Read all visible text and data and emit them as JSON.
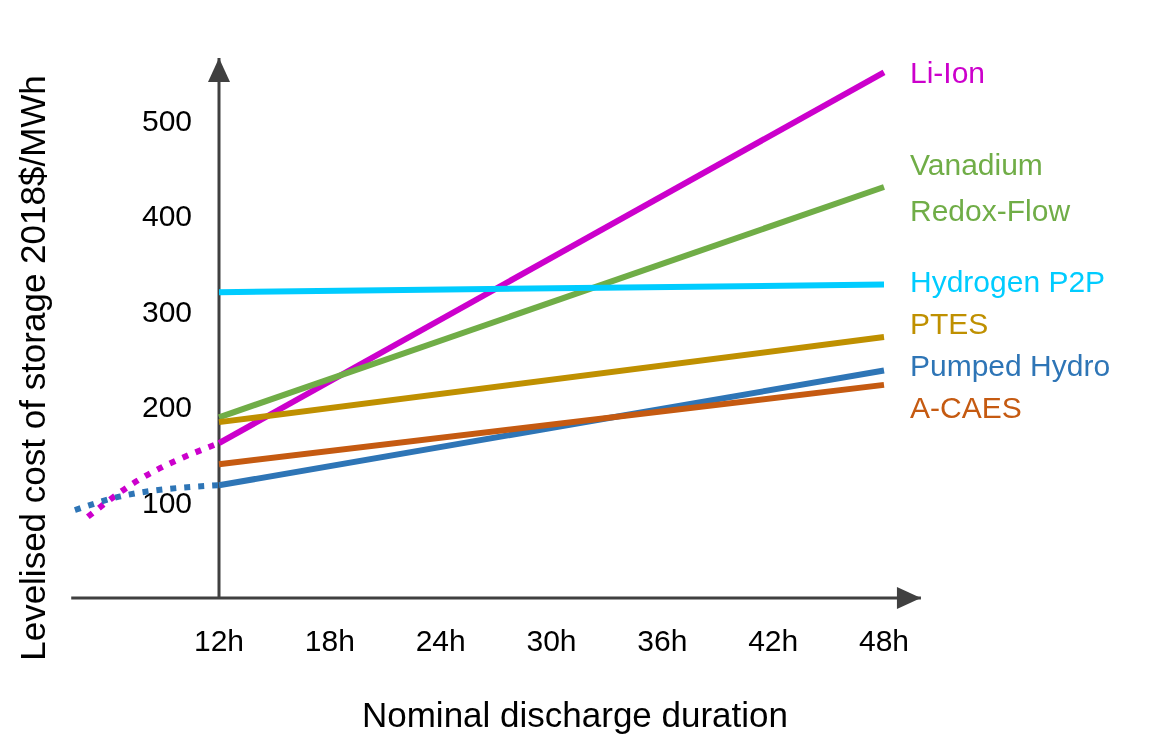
{
  "chart_data": {
    "type": "line",
    "xlabel": "Nominal discharge duration",
    "ylabel": "Levelised cost of storage 2018$/MWh",
    "xlim": [
      4,
      50
    ],
    "ylim": [
      0,
      565
    ],
    "xticks": [
      {
        "value": 12,
        "label": "12h"
      },
      {
        "value": 18,
        "label": "18h"
      },
      {
        "value": 24,
        "label": "24h"
      },
      {
        "value": 30,
        "label": "30h"
      },
      {
        "value": 36,
        "label": "36h"
      },
      {
        "value": 42,
        "label": "42h"
      },
      {
        "value": 48,
        "label": "48h"
      }
    ],
    "yticks": [
      100,
      200,
      300,
      400,
      500
    ],
    "grid": false,
    "line_style": "solid",
    "marker": "none",
    "series": [
      {
        "name": "Li-Ion",
        "color": "#cc00cc",
        "x": [
          12,
          48
        ],
        "values": [
          162,
          550
        ]
      },
      {
        "name": "Vanadium Redox-Flow",
        "color": "#70ad47",
        "x": [
          12,
          48
        ],
        "values": [
          189,
          430
        ]
      },
      {
        "name": "Hydrogen P2P",
        "color": "#00ccff",
        "x": [
          12,
          48
        ],
        "values": [
          320,
          328
        ]
      },
      {
        "name": "PTES",
        "color": "#bf9000",
        "x": [
          12,
          48
        ],
        "values": [
          184,
          273
        ]
      },
      {
        "name": "Pumped Hydro",
        "color": "#2e75b6",
        "x": [
          12,
          48
        ],
        "values": [
          118,
          238
        ]
      },
      {
        "name": "A-CAES",
        "color": "#c55a11",
        "x": [
          12,
          48
        ],
        "values": [
          140,
          223
        ]
      },
      {
        "color": "#cc00cc",
        "line_style": "dotted",
        "x": [
          4.9,
          7.2,
          12
        ],
        "values": [
          85,
          118,
          162
        ]
      },
      {
        "color": "#2e75b6",
        "line_style": "dotted",
        "x": [
          4.2,
          6.6,
          12
        ],
        "values": [
          92,
          106,
          118
        ]
      }
    ]
  }
}
